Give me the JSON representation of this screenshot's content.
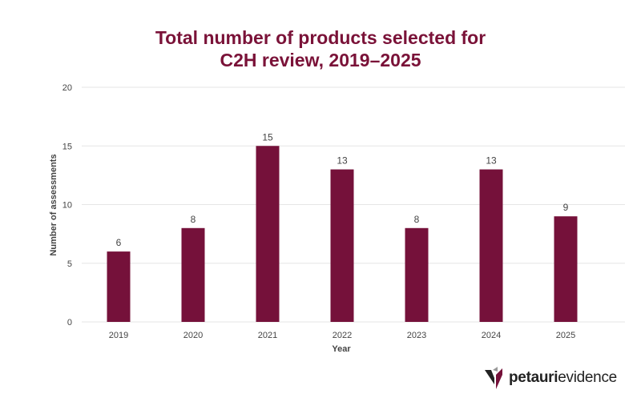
{
  "chart_data": {
    "type": "bar",
    "title_line1": "Total number of products selected for",
    "title_line2": "C2H review, 2019–2025",
    "xlabel": "Year",
    "ylabel": "Number of assessments",
    "categories": [
      "2019",
      "2020",
      "2021",
      "2022",
      "2023",
      "2024",
      "2025"
    ],
    "values": [
      6,
      8,
      15,
      13,
      8,
      13,
      9
    ],
    "ylim": [
      0,
      20
    ],
    "yticks": [
      0,
      5,
      10,
      15,
      20
    ],
    "grid": true,
    "data_labels": true,
    "colors": {
      "bar": "#75113a",
      "title": "#7a1238",
      "grid": "#e6e6e6",
      "text": "#444444"
    }
  },
  "logo": {
    "bold": "petauri",
    "light": "evidence"
  }
}
